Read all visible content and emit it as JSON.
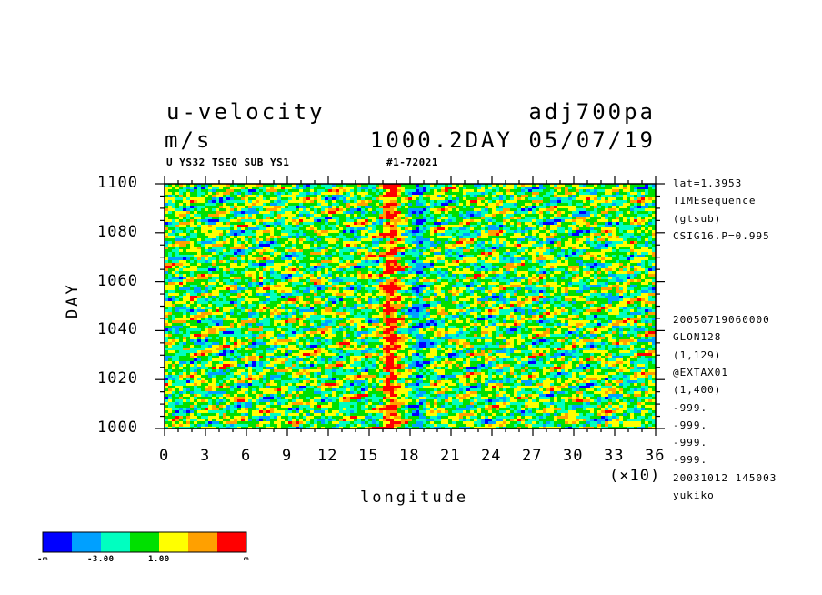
{
  "header": {
    "var_name": "u-velocity",
    "units": "m/s",
    "experiment": "adj700pa",
    "time_info": "1000.2DAY 05/07/19",
    "sub_title": "U YS32 TSEQ SUB YS1",
    "sub_id": "#1-72021"
  },
  "side_info": {
    "top": [
      "lat=1.3953",
      "TIMEsequence",
      "(gtsub)",
      "CSIG16.P=0.995"
    ],
    "bottom": [
      "20050719060000",
      "GLON128",
      "(1,129)",
      "@EXTAX01",
      "(1,400)",
      "-999.",
      "-999.",
      "-999.",
      "-999.",
      "20031012 145003",
      "yukiko"
    ]
  },
  "x_scale_note": "(×10)",
  "colorbar": {
    "colors": [
      "#0000ff",
      "#00a0ff",
      "#00ffc0",
      "#00e000",
      "#ffff00",
      "#ffa000",
      "#ff0000"
    ],
    "labels": [
      "-∞",
      "-3.00",
      "1.00",
      "∞"
    ]
  },
  "chart_data": {
    "type": "heatmap",
    "xlabel": "longitude",
    "ylabel": "DAY",
    "xlim": [
      0,
      36
    ],
    "ylim": [
      1000,
      1100
    ],
    "x_ticks": [
      "0",
      "3",
      "6",
      "9",
      "12",
      "15",
      "18",
      "21",
      "24",
      "27",
      "30",
      "33",
      "36"
    ],
    "y_ticks": [
      "1000",
      "1020",
      "1040",
      "1060",
      "1080",
      "1100"
    ],
    "features": {
      "positive_band_longitude": 16.5,
      "negative_band_longitude": 18.5
    }
  }
}
